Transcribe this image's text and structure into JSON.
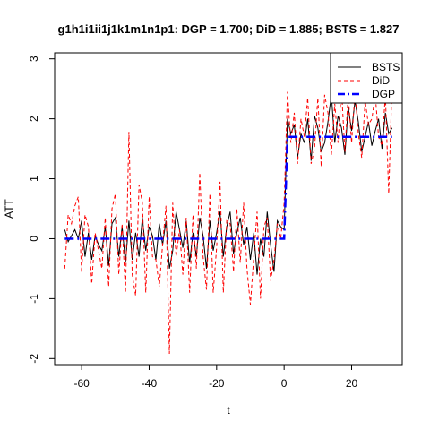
{
  "chart_data": {
    "type": "line",
    "title": "g1h1i1ii1j1k1m1n1p1: DGP = 1.700; DiD = 1.885;  BSTS = 1.827",
    "xlabel": "t",
    "ylabel": "ATT",
    "xlim": [
      -68,
      35
    ],
    "ylim": [
      -2.1,
      3.1
    ],
    "xticks": [
      -60,
      -40,
      -20,
      0,
      20
    ],
    "yticks": [
      -2,
      -1,
      0,
      1,
      2,
      3
    ],
    "legend_position": "top-right",
    "series": [
      {
        "name": "BSTS",
        "color": "#000000",
        "style": "solid",
        "x": [
          -65,
          -64,
          -63,
          -62,
          -61,
          -60,
          -59,
          -58,
          -57,
          -56,
          -55,
          -54,
          -53,
          -52,
          -51,
          -50,
          -49,
          -48,
          -47,
          -46,
          -45,
          -44,
          -43,
          -42,
          -41,
          -40,
          -39,
          -38,
          -37,
          -36,
          -35,
          -34,
          -33,
          -32,
          -31,
          -30,
          -29,
          -28,
          -27,
          -26,
          -25,
          -24,
          -23,
          -22,
          -21,
          -20,
          -19,
          -18,
          -17,
          -16,
          -15,
          -14,
          -13,
          -12,
          -11,
          -10,
          -9,
          -8,
          -7,
          -6,
          -5,
          -4,
          -3,
          -2,
          -1,
          0,
          1,
          2,
          3,
          4,
          5,
          6,
          7,
          8,
          9,
          10,
          11,
          12,
          13,
          14,
          15,
          16,
          17,
          18,
          19,
          20,
          21,
          22,
          23,
          24,
          25,
          26,
          27,
          28,
          29,
          30,
          31,
          32
        ],
        "values": [
          0.15,
          -0.05,
          0.05,
          0.15,
          0.0,
          0.3,
          -0.3,
          0.1,
          -0.35,
          0.05,
          -0.1,
          -0.2,
          0.2,
          -0.45,
          0.25,
          0.35,
          -0.3,
          0.2,
          -0.4,
          0.3,
          -0.35,
          0.1,
          -0.3,
          0.35,
          -0.2,
          0.2,
          0.05,
          -0.35,
          0.25,
          -0.1,
          0.3,
          -0.5,
          -0.2,
          0.45,
          0.15,
          -0.15,
          0.3,
          -0.4,
          0.1,
          -0.3,
          0.35,
          0.05,
          -0.5,
          0.3,
          -0.2,
          0.1,
          0.45,
          -0.3,
          0.2,
          0.45,
          -0.25,
          0.1,
          0.35,
          -0.1,
          0.2,
          -0.35,
          0.1,
          -0.6,
          0.0,
          -0.3,
          0.45,
          -0.1,
          -0.55,
          0.3,
          0.2,
          0.15,
          2.0,
          1.75,
          1.9,
          1.35,
          1.75,
          1.6,
          2.0,
          1.3,
          2.05,
          1.85,
          1.45,
          1.6,
          1.95,
          2.4,
          1.6,
          2.05,
          1.85,
          1.4,
          2.2,
          1.8,
          2.3,
          1.95,
          1.45,
          1.7,
          1.95,
          1.55,
          1.8,
          2.0,
          1.5,
          2.1,
          1.75,
          1.85
        ]
      },
      {
        "name": "DiD",
        "color": "#ff0000",
        "style": "dashed",
        "x": [
          -65,
          -64,
          -63,
          -62,
          -61,
          -60,
          -59,
          -58,
          -57,
          -56,
          -55,
          -54,
          -53,
          -52,
          -51,
          -50,
          -49,
          -48,
          -47,
          -46,
          -45,
          -44,
          -43,
          -42,
          -41,
          -40,
          -39,
          -38,
          -37,
          -36,
          -35,
          -34,
          -33,
          -32,
          -31,
          -30,
          -29,
          -28,
          -27,
          -26,
          -25,
          -24,
          -23,
          -22,
          -21,
          -20,
          -19,
          -18,
          -17,
          -16,
          -15,
          -14,
          -13,
          -12,
          -11,
          -10,
          -9,
          -8,
          -7,
          -6,
          -5,
          -4,
          -3,
          -2,
          -1,
          0,
          1,
          2,
          3,
          4,
          5,
          6,
          7,
          8,
          9,
          10,
          11,
          12,
          13,
          14,
          15,
          16,
          17,
          18,
          19,
          20,
          21,
          22,
          23,
          24,
          25,
          26,
          27,
          28,
          29,
          30,
          31,
          32
        ],
        "values": [
          -0.5,
          0.4,
          0.25,
          0.55,
          0.7,
          -0.55,
          0.4,
          0.2,
          -0.75,
          0.1,
          -0.2,
          -0.5,
          0.35,
          -0.8,
          0.5,
          0.75,
          -0.6,
          0.25,
          -0.9,
          1.78,
          -0.6,
          -0.95,
          0.9,
          0.6,
          -0.9,
          0.7,
          -0.3,
          -0.35,
          -0.8,
          -0.1,
          0.55,
          -1.92,
          0.6,
          -0.3,
          0.15,
          -0.6,
          0.35,
          -0.9,
          0.4,
          -0.5,
          1.1,
          -0.3,
          -0.85,
          0.75,
          -0.9,
          -0.15,
          0.95,
          -0.9,
          0.3,
          0.25,
          -0.55,
          0.5,
          -0.4,
          0.6,
          -0.5,
          -1.1,
          -0.3,
          0.45,
          -1.0,
          0.2,
          0.35,
          -0.7,
          -0.35,
          0.25,
          0.0,
          0.6,
          2.45,
          1.6,
          2.1,
          1.25,
          2.0,
          1.7,
          2.35,
          1.25,
          1.5,
          2.35,
          1.2,
          2.4,
          2.1,
          1.4,
          2.25,
          1.6,
          2.5,
          1.45,
          2.4,
          1.6,
          2.45,
          1.75,
          1.35,
          2.3,
          1.9,
          2.0,
          2.4,
          1.7,
          1.55,
          2.4,
          0.75,
          2.6
        ]
      },
      {
        "name": "DGP",
        "color": "#0000ff",
        "style": "dashdot",
        "x": [
          -65,
          -1,
          0,
          1,
          32
        ],
        "values": [
          0,
          0,
          0,
          1.7,
          1.7
        ]
      }
    ]
  }
}
